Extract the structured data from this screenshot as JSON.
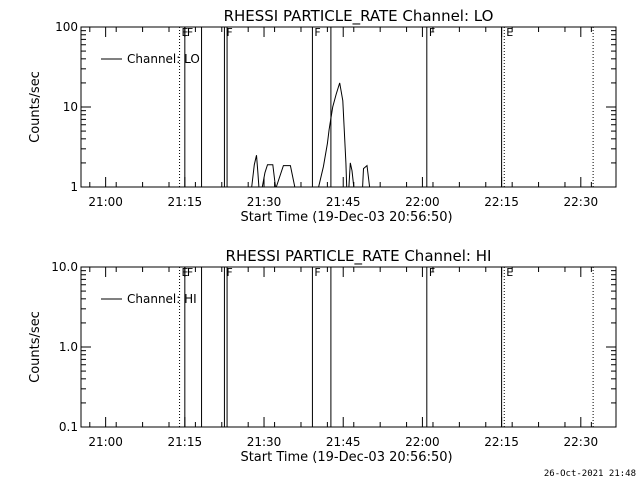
{
  "footer_timestamp": "26-Oct-2021 21:48",
  "chart_data": [
    {
      "type": "line",
      "title": "RHESSI PARTICLE_RATE Channel: LO",
      "xlabel": "Start Time (19-Dec-03 20:56:50)",
      "ylabel": "Counts/sec",
      "y_scale": "log",
      "ylim": [
        1,
        100
      ],
      "y_ticks": [
        1,
        10,
        100
      ],
      "y_tick_labels": [
        "1",
        "10",
        "100"
      ],
      "x_tick_labels": [
        "21:00",
        "21:15",
        "21:30",
        "21:45",
        "22:00",
        "22:15",
        "22:30"
      ],
      "x_tick_values": [
        180,
        1080,
        1980,
        2880,
        3780,
        4680,
        5580
      ],
      "xlim": [
        -100,
        5980
      ],
      "legend": [
        "Channel: LO"
      ],
      "legend_position": "top-left",
      "series": [
        {
          "name": "Channel: LO",
          "points": [
            [
              2600,
              1
            ],
            [
              2655,
              1.8
            ],
            [
              2700,
              3.5
            ],
            [
              2720,
              5.2
            ],
            [
              2760,
              10
            ],
            [
              2800,
              14.5
            ],
            [
              2840,
              20
            ],
            [
              2875,
              12
            ],
            [
              2910,
              2
            ],
            [
              2920,
              1
            ],
            [
              2945,
              1
            ],
            [
              2960,
              2
            ],
            [
              2980,
              1.6
            ],
            [
              3000,
              1
            ],
            [
              3100,
              1
            ],
            [
              3110,
              1.7
            ],
            [
              3150,
              1.85
            ],
            [
              3180,
              1
            ]
          ],
          "segments": [
            [
              [
                1840,
                1
              ],
              [
                1870,
                1.9
              ],
              [
                1895,
                2.5
              ],
              [
                1910,
                1.5
              ],
              [
                1922,
                1
              ]
            ],
            [
              [
                1960,
                1
              ],
              [
                1990,
                1.5
              ],
              [
                2020,
                1.9
              ],
              [
                2080,
                1.9
              ],
              [
                2110,
                1
              ]
            ],
            [
              [
                2120,
                1
              ],
              [
                2200,
                1.85
              ],
              [
                2280,
                1.85
              ],
              [
                2330,
                1
              ]
            ]
          ]
        }
      ],
      "event_lines": [
        {
          "x": 1020,
          "style": "dotted",
          "flag": "E"
        },
        {
          "x": 1080,
          "style": "solid",
          "flag": "F"
        },
        {
          "x": 1270,
          "style": "solid",
          "flag": ""
        },
        {
          "x": 1530,
          "style": "solid",
          "flag": "F"
        },
        {
          "x": 1560,
          "style": "solid",
          "flag": ""
        },
        {
          "x": 2530,
          "style": "solid",
          "flag": "F"
        },
        {
          "x": 2740,
          "style": "solid",
          "flag": ""
        },
        {
          "x": 3830,
          "style": "solid",
          "flag": "F"
        },
        {
          "x": 4680,
          "style": "solid",
          "flag": ""
        },
        {
          "x": 4710,
          "style": "dotted",
          "flag": "E"
        },
        {
          "x": 5720,
          "style": "dotted",
          "flag": ""
        }
      ]
    },
    {
      "type": "line",
      "title": "RHESSI PARTICLE_RATE Channel: HI",
      "xlabel": "Start Time (19-Dec-03 20:56:50)",
      "ylabel": "Counts/sec",
      "y_scale": "log",
      "ylim": [
        0.1,
        10
      ],
      "y_ticks": [
        0.1,
        1,
        10
      ],
      "y_tick_labels": [
        "0.1",
        "1.0",
        "10.0"
      ],
      "x_tick_labels": [
        "21:00",
        "21:15",
        "21:30",
        "21:45",
        "22:00",
        "22:15",
        "22:30"
      ],
      "x_tick_values": [
        180,
        1080,
        1980,
        2880,
        3780,
        4680,
        5580
      ],
      "xlim": [
        -100,
        5980
      ],
      "legend": [
        "Channel: HI"
      ],
      "legend_position": "top-left",
      "series": [
        {
          "name": "Channel: HI",
          "points": [],
          "segments": []
        }
      ],
      "event_lines": [
        {
          "x": 1020,
          "style": "dotted",
          "flag": "E"
        },
        {
          "x": 1080,
          "style": "solid",
          "flag": "F"
        },
        {
          "x": 1270,
          "style": "solid",
          "flag": ""
        },
        {
          "x": 1530,
          "style": "solid",
          "flag": "F"
        },
        {
          "x": 1560,
          "style": "solid",
          "flag": ""
        },
        {
          "x": 2530,
          "style": "solid",
          "flag": "F"
        },
        {
          "x": 2740,
          "style": "solid",
          "flag": ""
        },
        {
          "x": 3830,
          "style": "solid",
          "flag": "F"
        },
        {
          "x": 4680,
          "style": "solid",
          "flag": ""
        },
        {
          "x": 4710,
          "style": "dotted",
          "flag": "E"
        },
        {
          "x": 5720,
          "style": "dotted",
          "flag": ""
        }
      ]
    }
  ]
}
